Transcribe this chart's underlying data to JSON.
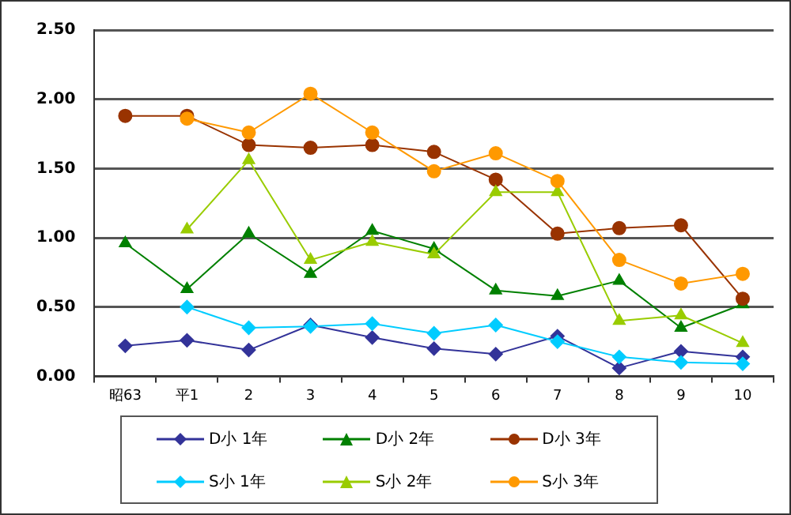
{
  "chart_data": {
    "type": "line",
    "categories": [
      "昭63",
      "平1",
      "2",
      "3",
      "4",
      "5",
      "6",
      "7",
      "8",
      "9",
      "10"
    ],
    "series": [
      {
        "name": "D小 1年",
        "color": "#333399",
        "marker": "diamond",
        "values": [
          0.22,
          0.26,
          0.19,
          0.37,
          0.28,
          0.2,
          0.16,
          0.29,
          0.06,
          0.18,
          0.14
        ]
      },
      {
        "name": "D小 2年",
        "color": "#008000",
        "marker": "triangle",
        "values": [
          0.96,
          0.63,
          1.03,
          0.74,
          1.05,
          0.92,
          0.62,
          0.58,
          0.69,
          0.35,
          0.52
        ]
      },
      {
        "name": "D小 3年",
        "color": "#993300",
        "marker": "circle",
        "values": [
          1.88,
          1.88,
          1.67,
          1.65,
          1.67,
          1.62,
          1.42,
          1.03,
          1.07,
          1.09,
          0.56
        ]
      },
      {
        "name": "S小 1年",
        "color": "#00ccff",
        "marker": "diamond",
        "values": [
          null,
          0.5,
          0.35,
          0.36,
          0.38,
          0.31,
          0.37,
          0.25,
          0.14,
          0.1,
          0.09
        ]
      },
      {
        "name": "S小 2年",
        "color": "#99cc00",
        "marker": "triangle",
        "values": [
          null,
          1.06,
          1.56,
          0.84,
          0.97,
          0.88,
          1.33,
          1.33,
          0.4,
          0.44,
          0.24
        ]
      },
      {
        "name": "S小 3年",
        "color": "#ff9900",
        "marker": "circle",
        "values": [
          null,
          1.86,
          1.76,
          2.04,
          1.76,
          1.48,
          1.61,
          1.41,
          0.84,
          0.67,
          0.74
        ]
      }
    ],
    "ylim": [
      0,
      2.5
    ],
    "yticks": [
      {
        "value": 0,
        "label": "0.00"
      },
      {
        "value": 0.5,
        "label": "0.50"
      },
      {
        "value": 1,
        "label": "1.00"
      },
      {
        "value": 1.5,
        "label": "1.50"
      },
      {
        "value": 2,
        "label": "2.00"
      },
      {
        "value": 2.5,
        "label": "2.50"
      }
    ],
    "grid": "y",
    "legend": "bottom",
    "line_style": "solid"
  }
}
